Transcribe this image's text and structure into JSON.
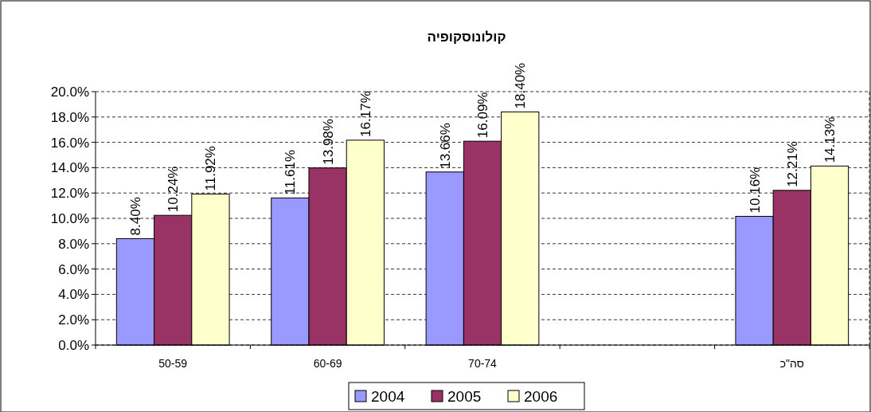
{
  "chart_data": {
    "type": "bar",
    "title": "קולונוסקופיה",
    "categories": [
      "50-59",
      "60-69",
      "70-74",
      null,
      "סה\"כ"
    ],
    "series": [
      {
        "name": "2004",
        "color": "#9999ff",
        "values": [
          8.4,
          11.61,
          13.66,
          null,
          10.16
        ]
      },
      {
        "name": "2005",
        "color": "#993366",
        "values": [
          10.24,
          13.98,
          16.09,
          null,
          12.21
        ]
      },
      {
        "name": "2006",
        "color": "#ffffcc",
        "values": [
          11.92,
          16.17,
          18.4,
          null,
          14.13
        ]
      }
    ],
    "ylim": [
      0,
      20
    ],
    "yticks": [
      {
        "value": 0,
        "label": "0.0%"
      },
      {
        "value": 2,
        "label": "2.0%"
      },
      {
        "value": 4,
        "label": "4.0%"
      },
      {
        "value": 6,
        "label": "6.0%"
      },
      {
        "value": 8,
        "label": "8.0%"
      },
      {
        "value": 10,
        "label": "10.0%"
      },
      {
        "value": 12,
        "label": "12.0%"
      },
      {
        "value": 14,
        "label": "14.0%"
      },
      {
        "value": 16,
        "label": "16.0%"
      },
      {
        "value": 18,
        "label": "18.0%"
      },
      {
        "value": 20,
        "label": "20.0%"
      }
    ],
    "value_labels": [
      [
        "8.40%",
        "11.61%",
        "13.66%",
        null,
        "10.16%"
      ],
      [
        "10.24%",
        "13.98%",
        "16.09%",
        null,
        "12.21%"
      ],
      [
        "11.92%",
        "16.17%",
        "18.40%",
        null,
        "14.13%"
      ]
    ],
    "grid": "y",
    "legend": "bottom"
  }
}
